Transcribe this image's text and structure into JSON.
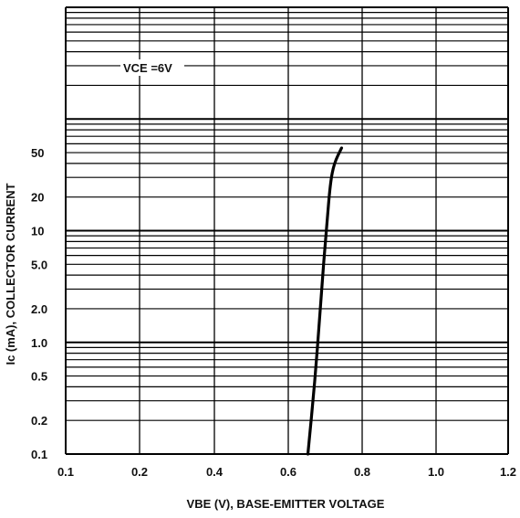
{
  "chart_data": {
    "type": "line",
    "xlabel": "VBE (V), BASE-EMITTER VOLTAGE",
    "ylabel": "Ic (mA), COLLECTOR CURRENT",
    "xlim": [
      0.1,
      1.2
    ],
    "ylim": [
      0.1,
      1000
    ],
    "y_scale": "log",
    "grid": true,
    "x_ticks": [
      "0.1",
      "0.2",
      "0.4",
      "0.6",
      "0.8",
      "1.0",
      "1.2"
    ],
    "y_ticks": [
      "0.1",
      "0.2",
      "0.5",
      "1.0",
      "2.0",
      "5.0",
      "10",
      "20",
      "50"
    ],
    "annotation": "VCE =6V",
    "series": [
      {
        "color": "#000000",
        "x": [
          0.65,
          0.67,
          0.685,
          0.7,
          0.71,
          0.72,
          0.74
        ],
        "y": [
          0.1,
          0.5,
          2.5,
          11,
          27,
          40,
          55
        ]
      }
    ]
  }
}
